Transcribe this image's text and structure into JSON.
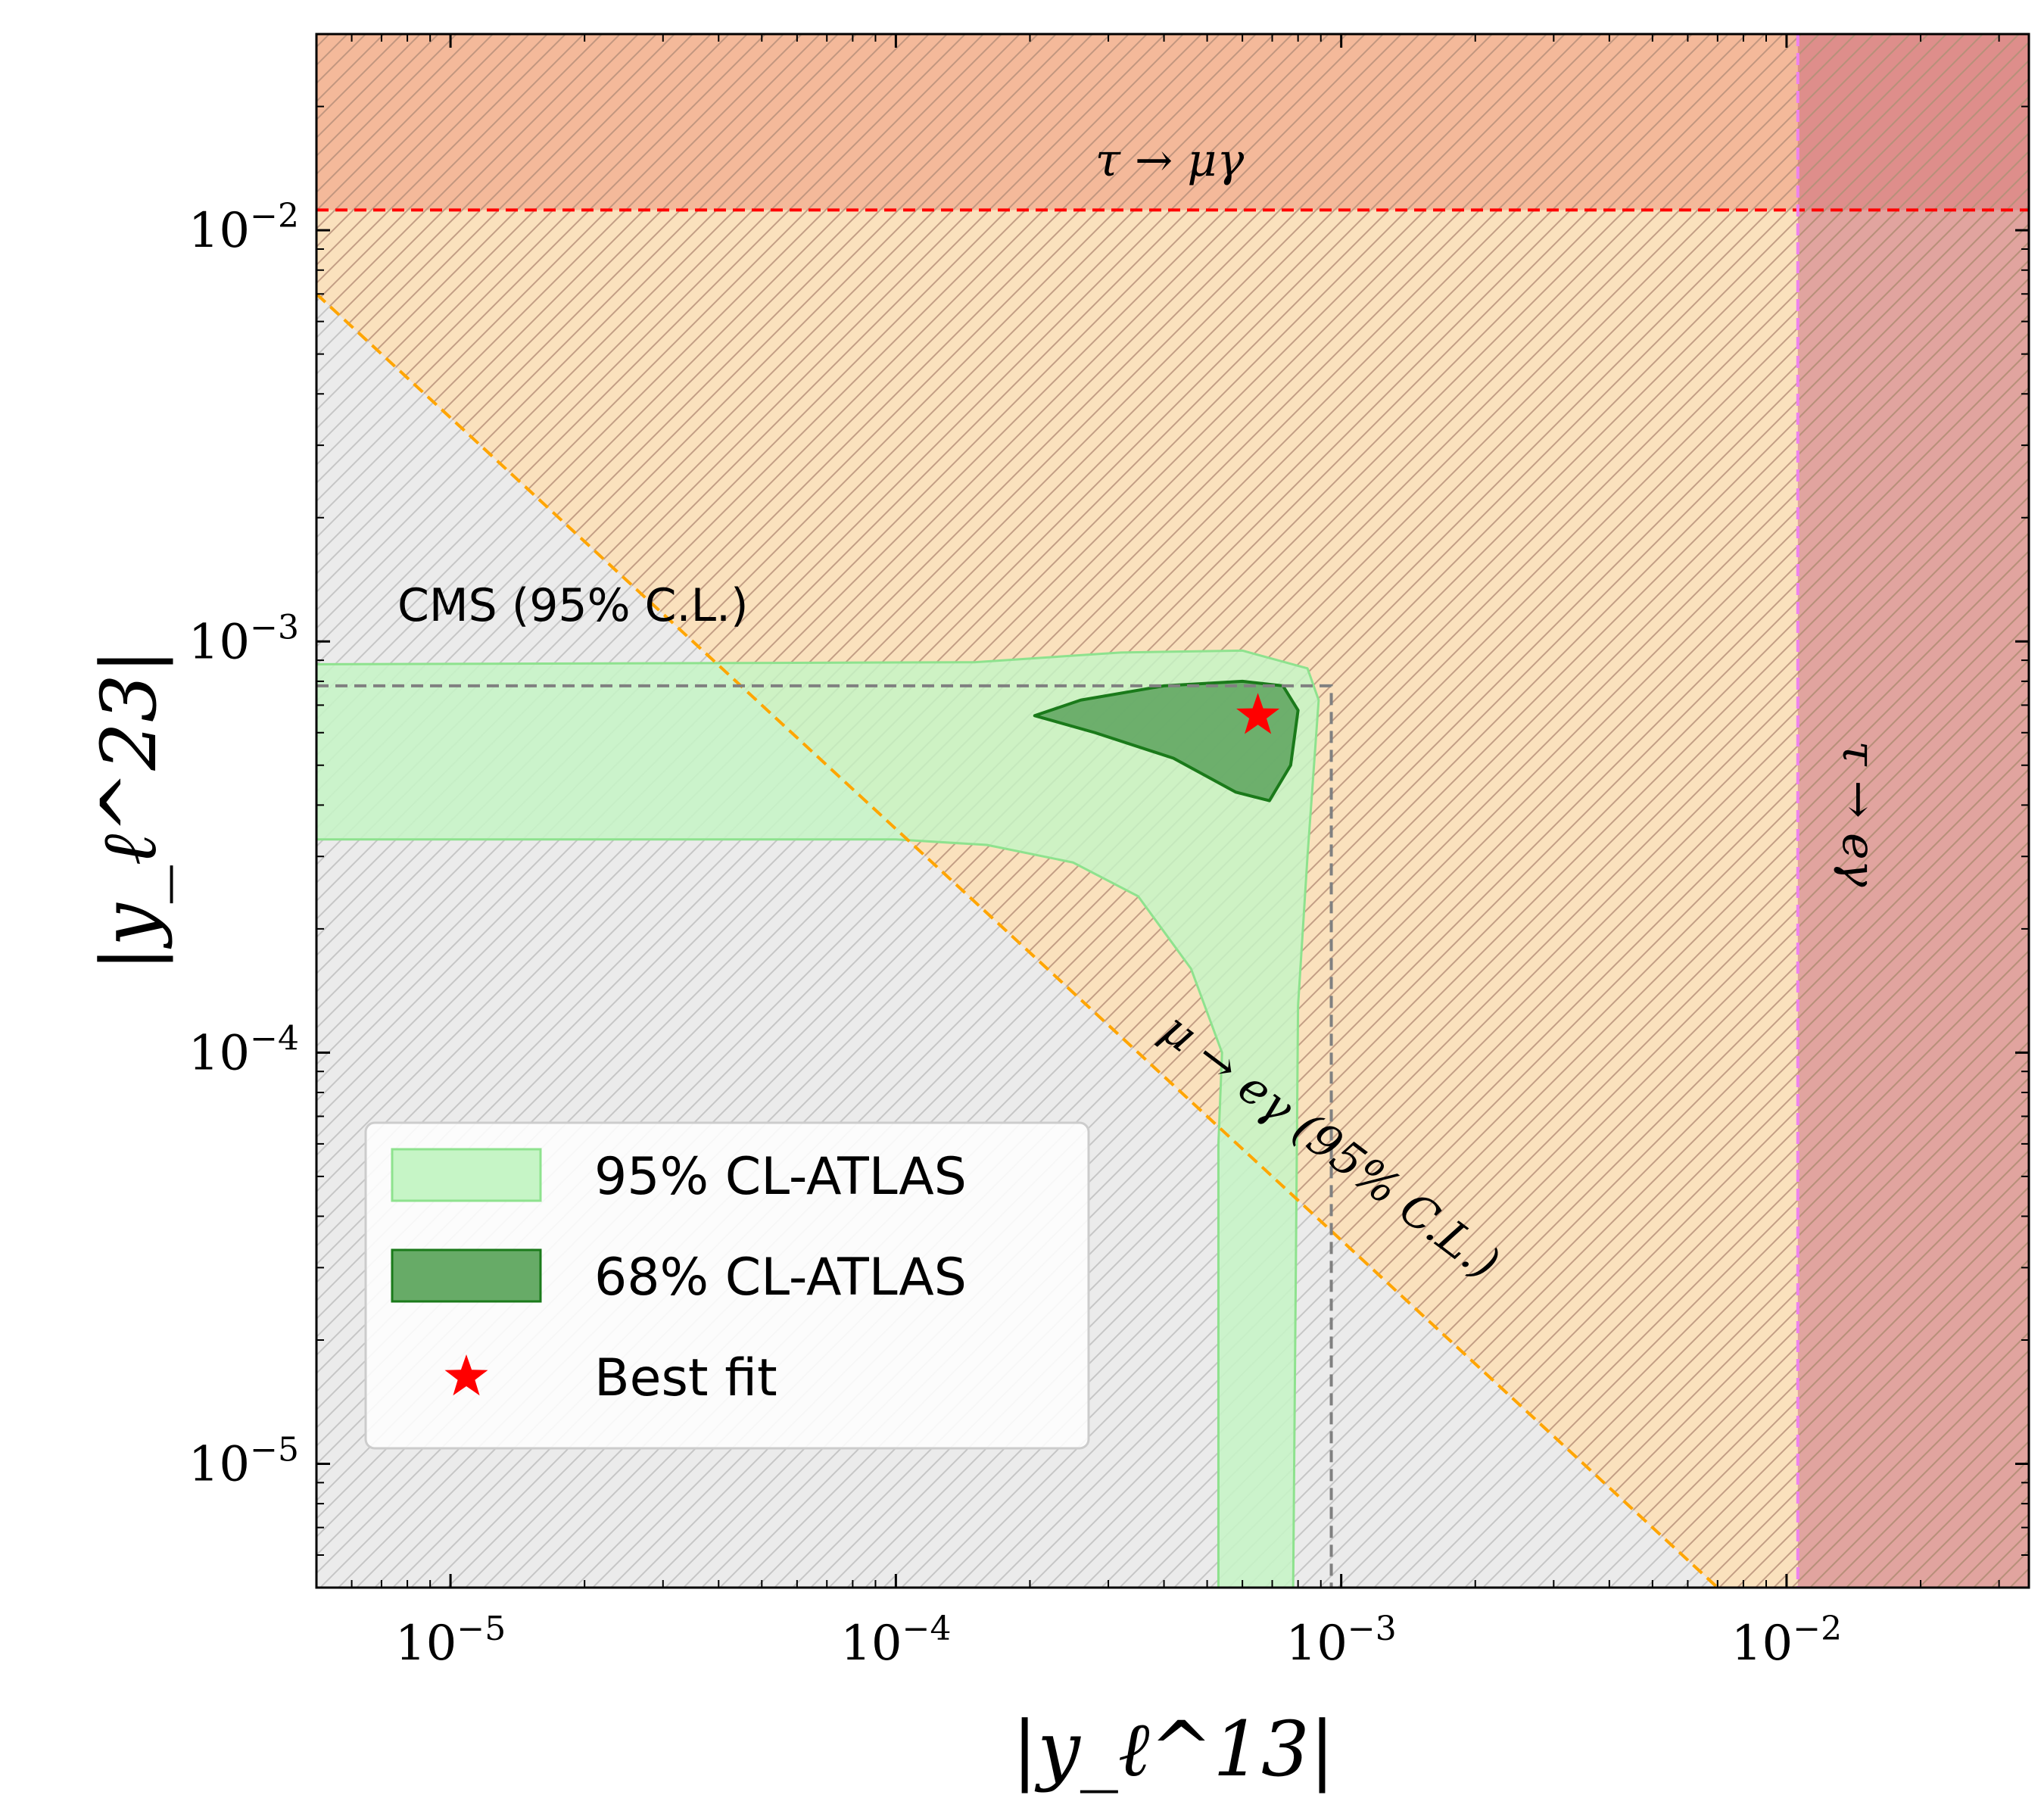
{
  "chart_data": {
    "type": "contour",
    "xlabel": "|y_ℓ^13|",
    "ylabel": "|y_ℓ^23|",
    "xscale": "log",
    "yscale": "log",
    "xlim": [
      5e-06,
      0.035
    ],
    "ylim": [
      5e-06,
      0.03
    ],
    "xticks": [
      {
        "value": 1e-05,
        "base": "10",
        "exp": "−5"
      },
      {
        "value": 0.0001,
        "base": "10",
        "exp": "−4"
      },
      {
        "value": 0.001,
        "base": "10",
        "exp": "−3"
      },
      {
        "value": 0.01,
        "base": "10",
        "exp": "−2"
      }
    ],
    "yticks": [
      {
        "value": 1e-05,
        "base": "10",
        "exp": "−5"
      },
      {
        "value": 0.0001,
        "base": "10",
        "exp": "−4"
      },
      {
        "value": 0.001,
        "base": "10",
        "exp": "−3"
      },
      {
        "value": 0.01,
        "base": "10",
        "exp": "−2"
      }
    ],
    "constraints": [
      {
        "name": "tau_to_mu_gamma",
        "label": "τ → μγ",
        "kind": "horizontal",
        "y": 0.0112,
        "color": "#ff0000",
        "fill": "#e8705a"
      },
      {
        "name": "tau_to_e_gamma",
        "label": "τ → eγ",
        "kind": "vertical",
        "x": 0.0106,
        "color": "#ee82ee",
        "fill": "#c45a7a"
      },
      {
        "name": "mu_to_e_gamma",
        "label": "μ → eγ (95% C.L.)",
        "kind": "product",
        "product": 3.5e-08,
        "color": "#ffa500",
        "fill": "#ffdcaa"
      },
      {
        "name": "cms",
        "label": "CMS (95% C.L.)",
        "kind": "box",
        "x": 0.00095,
        "y": 0.00078,
        "color": "#808080"
      }
    ],
    "regions": [
      {
        "name": "atlas_95",
        "label": "95% CL-ATLAS",
        "fill": "#c6f5c6",
        "edge": "#8ee28e",
        "boundary": [
          [
            5e-06,
            0.00088
          ],
          [
            0.00015,
            0.00089
          ],
          [
            0.00032,
            0.00094
          ],
          [
            0.0006,
            0.00095
          ],
          [
            0.00084,
            0.00086
          ],
          [
            0.00089,
            0.00072
          ],
          [
            0.00084,
            0.0003
          ],
          [
            0.0008,
            0.00013
          ],
          [
            0.00078,
            5e-06
          ],
          [
            0.00053,
            5e-06
          ],
          [
            0.00053,
            6e-05
          ],
          [
            0.00054,
            0.0001
          ],
          [
            0.00046,
            0.00016
          ],
          [
            0.00035,
            0.00024
          ],
          [
            0.00025,
            0.00029
          ],
          [
            0.00016,
            0.00032
          ],
          [
            0.0001,
            0.00033
          ],
          [
            5e-06,
            0.00033
          ]
        ]
      },
      {
        "name": "atlas_68",
        "label": "68% CL-ATLAS",
        "fill": "#67ab67",
        "edge": "#1a7a1a",
        "boundary": [
          [
            0.000205,
            0.00066
          ],
          [
            0.00026,
            0.00072
          ],
          [
            0.0004,
            0.00078
          ],
          [
            0.0006,
            0.0008
          ],
          [
            0.00074,
            0.00078
          ],
          [
            0.0008,
            0.00068
          ],
          [
            0.00077,
            0.0005
          ],
          [
            0.00069,
            0.00041
          ],
          [
            0.00058,
            0.00043
          ],
          [
            0.00042,
            0.00052
          ],
          [
            0.00028,
            0.0006
          ]
        ]
      }
    ],
    "best_fit": {
      "label": "Best fit",
      "x": 0.00065,
      "y": 0.00066,
      "color": "#ff0000"
    },
    "legend": {
      "location": "lower-left",
      "entries": [
        "95% CL-ATLAS",
        "68% CL-ATLAS",
        "Best fit"
      ]
    }
  }
}
